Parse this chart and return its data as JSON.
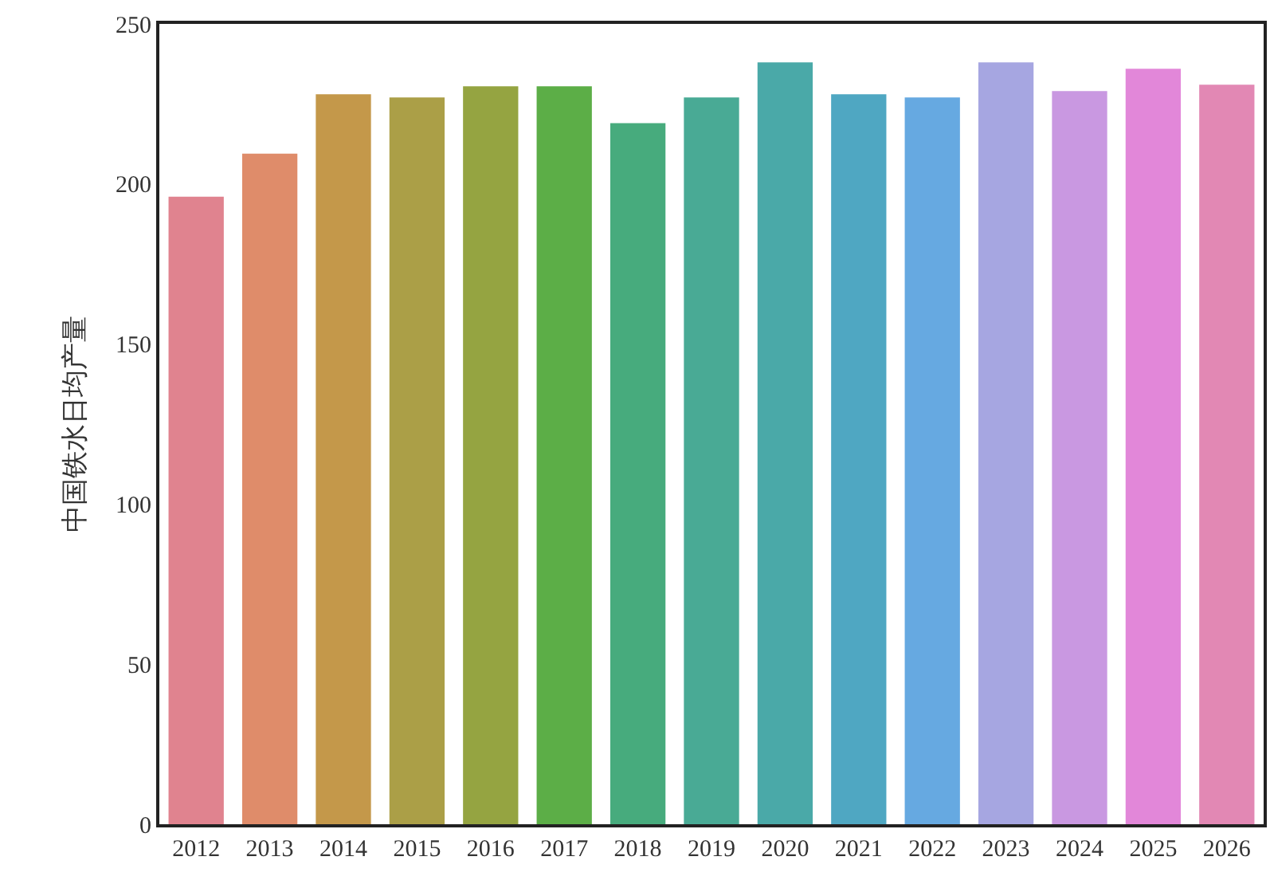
{
  "chart_data": {
    "type": "bar",
    "ylabel": "中国铁水日均产量",
    "categories": [
      "2012",
      "2013",
      "2014",
      "2015",
      "2016",
      "2017",
      "2018",
      "2019",
      "2020",
      "2021",
      "2022",
      "2023",
      "2024",
      "2025",
      "2026"
    ],
    "values": [
      196,
      209.5,
      228,
      227,
      230.5,
      230.5,
      219,
      227,
      238,
      228,
      227,
      238,
      229,
      236,
      231
    ],
    "colors": [
      "#e0838f",
      "#df8c6a",
      "#c4984a",
      "#ab9f47",
      "#95a441",
      "#5cae47",
      "#47ab7d",
      "#49aa95",
      "#4aa9a8",
      "#4fa7c2",
      "#66a9e1",
      "#a6a6e1",
      "#c998e1",
      "#e287d9",
      "#e288b4"
    ],
    "ylim": [
      0,
      250
    ],
    "yticks": [
      0,
      50,
      100,
      150,
      200,
      250
    ]
  }
}
